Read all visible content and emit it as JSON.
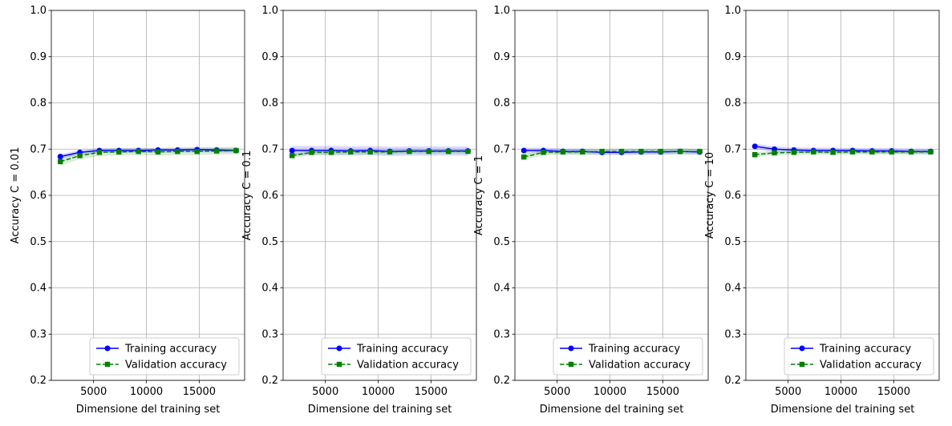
{
  "chart_data": [
    {
      "type": "line",
      "ylabel": "Accuracy C = 0.01",
      "xlabel": "Dimensione del training set",
      "ylim": [
        0.2,
        1.0
      ],
      "xlim": [
        1000,
        19300
      ],
      "xticks": [
        5000,
        10000,
        15000
      ],
      "xtick_labels": [
        "5000",
        "10000",
        "15000"
      ],
      "yticks": [
        0.2,
        0.3,
        0.4,
        0.5,
        0.6,
        0.7,
        0.8,
        0.9,
        1.0
      ],
      "ytick_labels": [
        "0.2",
        "0.3",
        "0.4",
        "0.5",
        "0.6",
        "0.7",
        "0.8",
        "0.9",
        "1.0"
      ],
      "grid": true,
      "legend": "lower right",
      "x": [
        1850,
        3700,
        5550,
        7400,
        9250,
        11100,
        12950,
        14800,
        16650,
        18500
      ],
      "series": [
        {
          "name": "Training accuracy",
          "color": "#0000ff",
          "marker": "circle",
          "dash": false,
          "values": [
            0.684,
            0.693,
            0.697,
            0.697,
            0.697,
            0.698,
            0.698,
            0.699,
            0.698,
            0.697
          ],
          "band": 0.005
        },
        {
          "name": "Validation accuracy",
          "color": "#008000",
          "marker": "square",
          "dash": true,
          "values": [
            0.673,
            0.686,
            0.693,
            0.694,
            0.695,
            0.694,
            0.695,
            0.695,
            0.696,
            0.697
          ],
          "band": 0.008
        }
      ]
    },
    {
      "type": "line",
      "ylabel": "Accuracy C = 0.1",
      "xlabel": "Dimensione del training set",
      "ylim": [
        0.2,
        1.0
      ],
      "xlim": [
        1000,
        19300
      ],
      "xticks": [
        5000,
        10000,
        15000
      ],
      "xtick_labels": [
        "5000",
        "10000",
        "15000"
      ],
      "yticks": [
        0.2,
        0.3,
        0.4,
        0.5,
        0.6,
        0.7,
        0.8,
        0.9,
        1.0
      ],
      "ytick_labels": [
        "0.2",
        "0.3",
        "0.4",
        "0.5",
        "0.6",
        "0.7",
        "0.8",
        "0.9",
        "1.0"
      ],
      "grid": true,
      "legend": "lower right",
      "x": [
        1850,
        3700,
        5550,
        7400,
        9250,
        11100,
        12950,
        14800,
        16650,
        18500
      ],
      "series": [
        {
          "name": "Training accuracy",
          "color": "#0000ff",
          "marker": "circle",
          "dash": false,
          "values": [
            0.697,
            0.697,
            0.697,
            0.696,
            0.697,
            0.695,
            0.696,
            0.696,
            0.696,
            0.696
          ],
          "band": 0.01
        },
        {
          "name": "Validation accuracy",
          "color": "#008000",
          "marker": "square",
          "dash": true,
          "values": [
            0.686,
            0.693,
            0.693,
            0.694,
            0.694,
            0.694,
            0.695,
            0.695,
            0.695,
            0.695
          ],
          "band": 0.005
        }
      ]
    },
    {
      "type": "line",
      "ylabel": "Accuracy C = 1",
      "xlabel": "Dimensione del training set",
      "ylim": [
        0.2,
        1.0
      ],
      "xlim": [
        1000,
        19300
      ],
      "xticks": [
        5000,
        10000,
        15000
      ],
      "xtick_labels": [
        "5000",
        "10000",
        "15000"
      ],
      "yticks": [
        0.2,
        0.3,
        0.4,
        0.5,
        0.6,
        0.7,
        0.8,
        0.9,
        1.0
      ],
      "ytick_labels": [
        "0.2",
        "0.3",
        "0.4",
        "0.5",
        "0.6",
        "0.7",
        "0.8",
        "0.9",
        "1.0"
      ],
      "grid": true,
      "legend": "lower right",
      "x": [
        1850,
        3700,
        5550,
        7400,
        9250,
        11100,
        12950,
        14800,
        16650,
        18500
      ],
      "series": [
        {
          "name": "Training accuracy",
          "color": "#0000ff",
          "marker": "circle",
          "dash": false,
          "values": [
            0.697,
            0.697,
            0.695,
            0.695,
            0.693,
            0.693,
            0.694,
            0.694,
            0.695,
            0.694
          ],
          "band": 0.006
        },
        {
          "name": "Validation accuracy",
          "color": "#008000",
          "marker": "square",
          "dash": true,
          "values": [
            0.683,
            0.693,
            0.694,
            0.694,
            0.695,
            0.695,
            0.695,
            0.695,
            0.695,
            0.695
          ],
          "band": 0.006
        }
      ]
    },
    {
      "type": "line",
      "ylabel": "Accuracy C = 10",
      "xlabel": "Dimensione del training set",
      "ylim": [
        0.2,
        1.0
      ],
      "xlim": [
        1000,
        19300
      ],
      "xticks": [
        5000,
        10000,
        15000
      ],
      "xtick_labels": [
        "5000",
        "10000",
        "15000"
      ],
      "yticks": [
        0.2,
        0.3,
        0.4,
        0.5,
        0.6,
        0.7,
        0.8,
        0.9,
        1.0
      ],
      "ytick_labels": [
        "0.2",
        "0.3",
        "0.4",
        "0.5",
        "0.6",
        "0.7",
        "0.8",
        "0.9",
        "1.0"
      ],
      "grid": true,
      "legend": "lower right",
      "x": [
        1850,
        3700,
        5550,
        7400,
        9250,
        11100,
        12950,
        14800,
        16650,
        18500
      ],
      "series": [
        {
          "name": "Training accuracy",
          "color": "#0000ff",
          "marker": "circle",
          "dash": false,
          "values": [
            0.706,
            0.7,
            0.698,
            0.697,
            0.697,
            0.697,
            0.696,
            0.696,
            0.695,
            0.695
          ],
          "band": 0.006
        },
        {
          "name": "Validation accuracy",
          "color": "#008000",
          "marker": "square",
          "dash": true,
          "values": [
            0.688,
            0.692,
            0.693,
            0.694,
            0.693,
            0.694,
            0.694,
            0.694,
            0.694,
            0.694
          ],
          "band": 0.005
        }
      ]
    }
  ]
}
